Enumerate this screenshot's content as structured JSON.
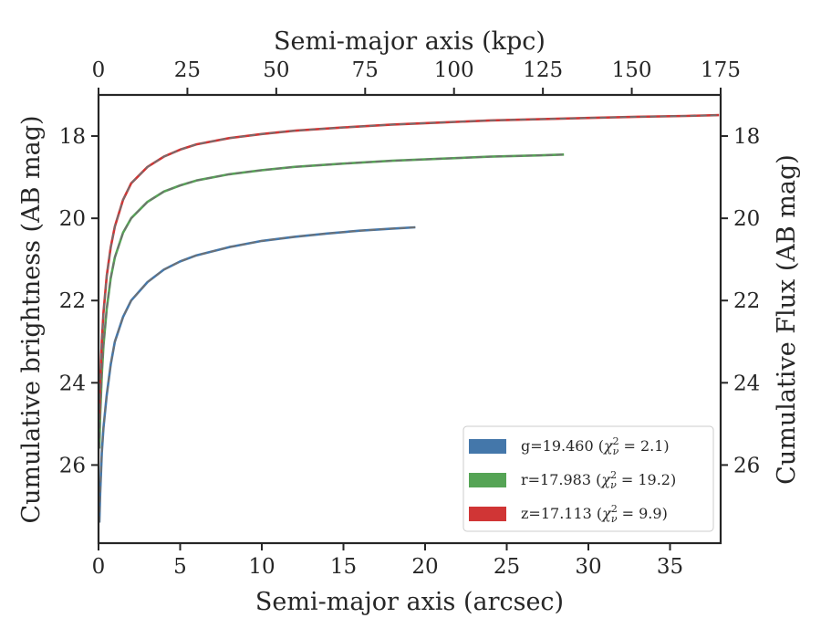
{
  "chart_data": {
    "type": "line",
    "xlabel_bottom": "Semi-major axis (arcsec)",
    "xlabel_top": "Semi-major axis (kpc)",
    "ylabel_left": "Cumulative brightness (AB mag)",
    "ylabel_right": "Cumulative Flux (AB mag)",
    "xlim": [
      0,
      38.1
    ],
    "ylim": [
      27.9,
      17.0
    ],
    "y_inverted": true,
    "xticks": [
      0,
      5,
      10,
      15,
      20,
      25,
      30,
      35
    ],
    "yticks": [
      18,
      20,
      22,
      24,
      26
    ],
    "top_xlim": [
      0,
      175
    ],
    "top_xticks": [
      0,
      25,
      50,
      75,
      100,
      125,
      150,
      175
    ],
    "grid": false,
    "legend_placement": "lower-right",
    "series": [
      {
        "name": "g=19.460 ($\\chi^2_\\nu=2.1$)",
        "color": "#4477aa",
        "x": [
          0.05,
          0.1,
          0.2,
          0.3,
          0.5,
          0.75,
          1,
          1.5,
          2,
          3,
          4,
          5,
          6,
          8,
          10,
          12,
          14,
          16,
          18,
          19.4
        ],
        "y": [
          27.4,
          26.7,
          25.7,
          25.1,
          24.3,
          23.55,
          23.0,
          22.4,
          22.0,
          21.55,
          21.25,
          21.05,
          20.9,
          20.7,
          20.55,
          20.45,
          20.37,
          20.3,
          20.25,
          20.22
        ]
      },
      {
        "name": "r=17.983 ($\\chi^2_\\nu=19.2$)",
        "color": "#55a455",
        "x": [
          0.05,
          0.1,
          0.2,
          0.3,
          0.5,
          0.75,
          1,
          1.5,
          2,
          3,
          4,
          5,
          6,
          8,
          10,
          12,
          15,
          18,
          21,
          24,
          27,
          28.5
        ],
        "y": [
          25.6,
          24.8,
          23.8,
          23.1,
          22.2,
          21.45,
          20.95,
          20.35,
          20.0,
          19.6,
          19.35,
          19.2,
          19.08,
          18.93,
          18.83,
          18.75,
          18.67,
          18.6,
          18.55,
          18.5,
          18.47,
          18.45
        ]
      },
      {
        "name": "z=17.113 ($\\chi^2_\\nu=9.9$)",
        "color": "#d03535",
        "x": [
          0.05,
          0.1,
          0.2,
          0.3,
          0.5,
          0.75,
          1,
          1.5,
          2,
          3,
          4,
          5,
          6,
          8,
          10,
          12,
          15,
          18,
          21,
          24,
          27,
          30,
          33,
          36,
          38
        ],
        "y": [
          24.9,
          24.0,
          23.0,
          22.3,
          21.4,
          20.7,
          20.2,
          19.55,
          19.15,
          18.75,
          18.5,
          18.33,
          18.2,
          18.05,
          17.95,
          17.87,
          17.79,
          17.72,
          17.67,
          17.62,
          17.59,
          17.56,
          17.53,
          17.51,
          17.49
        ]
      }
    ],
    "legend": [
      {
        "prefix": "g=19.460 (",
        "chi_value": "2.1",
        "color": "#4477aa"
      },
      {
        "prefix": "r=17.983 (",
        "chi_value": "19.2",
        "color": "#55a455"
      },
      {
        "prefix": "z=17.113 (",
        "chi_value": "9.9",
        "color": "#d03535"
      }
    ],
    "model_line_color": "#707070"
  }
}
